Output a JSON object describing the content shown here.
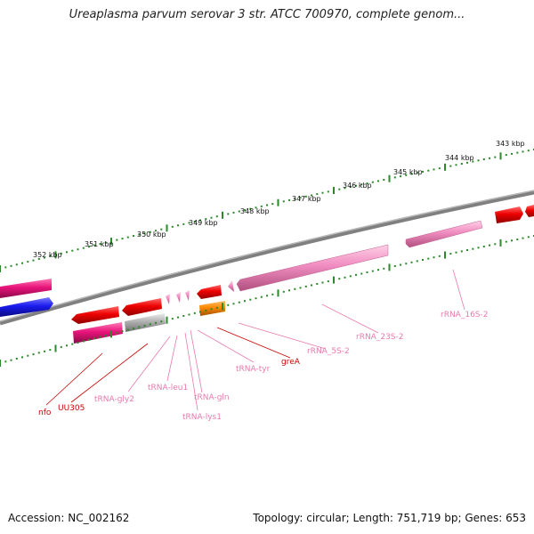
{
  "title": "Ureaplasma parvum serovar 3 str. ATCC 700970, complete genom...",
  "footer": {
    "accession": "Accession: NC_002162",
    "stats": "Topology: circular; Length: 751,719 bp; Genes: 653"
  },
  "scale_labels": [
    "343 kbp",
    "344 kbp",
    "345 kbp",
    "346 kbp",
    "347 kbp",
    "348 kbp",
    "349 kbp",
    "350 kbp",
    "351 kbp",
    "352 kbp"
  ],
  "gene_labels": {
    "nfo": "nfo",
    "uu305": "UU305",
    "trna_gly2": "tRNA-gly2",
    "trna_leu1": "tRNA-leu1",
    "trna_gln": "tRNA-gln",
    "trna_lys1": "tRNA-lys1",
    "trna_tyr": "tRNA-tyr",
    "grea": "greA",
    "rrna_5s_2": "rRNA_5S-2",
    "rrna_23s_2": "rRNA_23S-2",
    "rrna_16s_2": "rRNA_16S-2"
  },
  "colors": {
    "red_gene": "#ee0000",
    "magenta_gene": "#e8147a",
    "pink_rna": "#f08cc0",
    "blue_gene": "#1a1aee",
    "gray_gene": "#b0b0b0",
    "orange_gene": "#ff8800",
    "backbone": "#777777",
    "tick": "#2a8a2a",
    "label_red": "#cc0000",
    "label_pink": "#e87aae"
  }
}
